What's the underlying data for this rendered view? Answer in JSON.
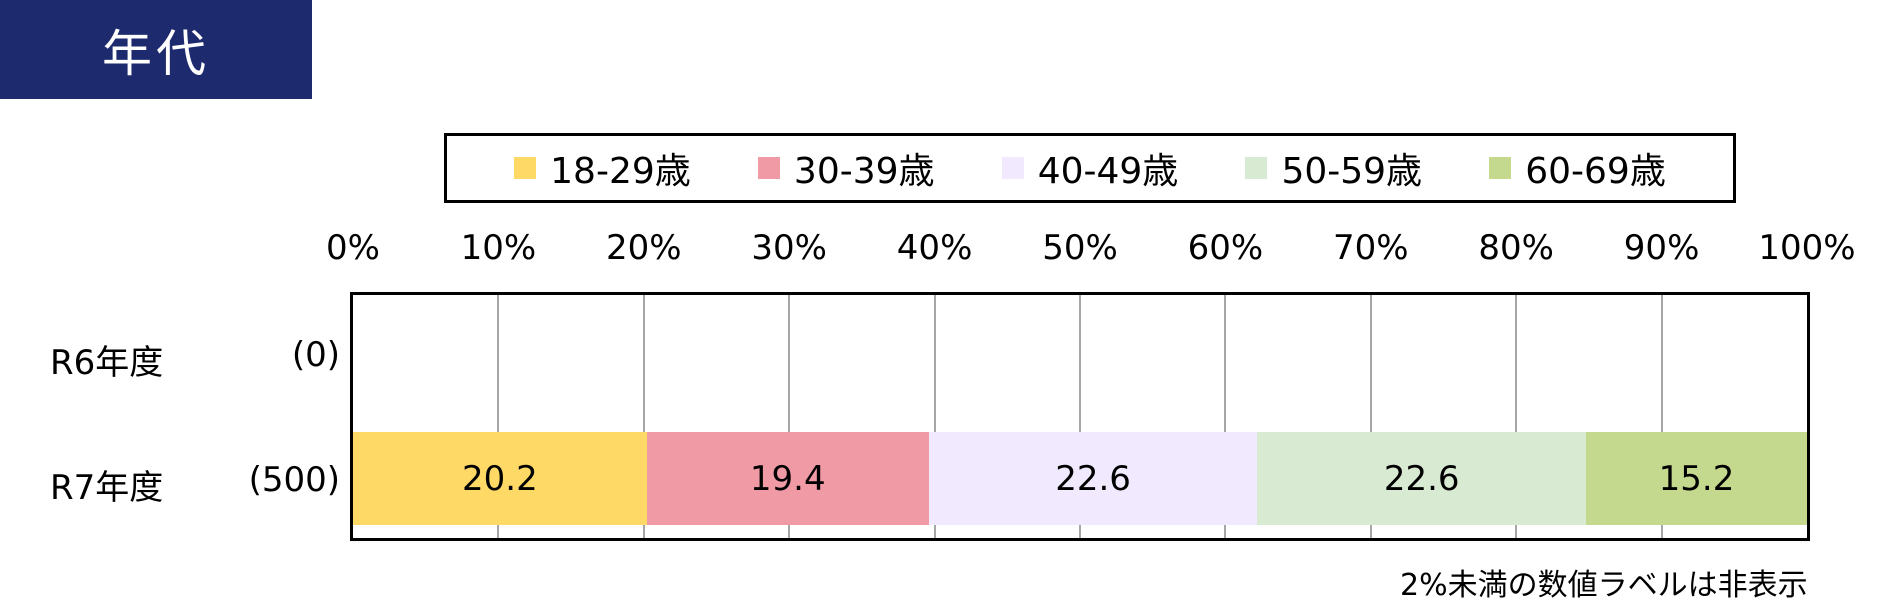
{
  "header": {
    "title": "年代"
  },
  "footnote": "2%未満の数値ラベルは非表示",
  "chart_data": {
    "type": "bar",
    "orientation": "horizontal",
    "stacked": true,
    "unit": "%",
    "xlim": [
      0,
      100
    ],
    "x_ticks": [
      "0%",
      "10%",
      "20%",
      "30%",
      "40%",
      "50%",
      "60%",
      "70%",
      "80%",
      "90%",
      "100%"
    ],
    "grid": true,
    "legend_position": "top",
    "categories": [
      {
        "label": "R6年度",
        "count": "(0)"
      },
      {
        "label": "R7年度",
        "count": "(500)"
      }
    ],
    "series": [
      {
        "name": "18-29歳",
        "color": "#ffd966",
        "values": [
          null,
          20.2
        ]
      },
      {
        "name": "30-39歳",
        "color": "#f09aa6",
        "values": [
          null,
          19.4
        ]
      },
      {
        "name": "40-49歳",
        "color": "#f1e9fd",
        "values": [
          null,
          22.6
        ]
      },
      {
        "name": "50-59歳",
        "color": "#d9ead3",
        "values": [
          null,
          22.6
        ]
      },
      {
        "name": "60-69歳",
        "color": "#c5d98e",
        "values": [
          null,
          15.2
        ]
      }
    ]
  }
}
